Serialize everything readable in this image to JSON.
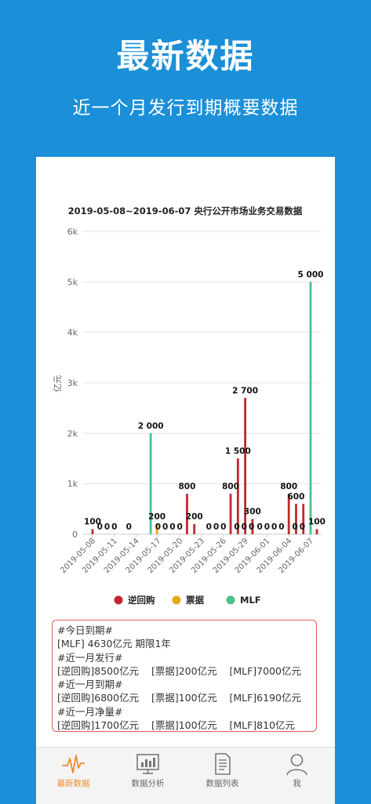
{
  "header": {
    "title": "最新数据",
    "subtitle": "近一个月发行到期概要数据"
  },
  "chart_data": {
    "type": "bar",
    "title": "2019-05-08~2019-06-07 央行公开市场业务交易数据",
    "ylabel": "亿元",
    "ylim": [
      0,
      6000
    ],
    "yticks": [
      "0",
      "1k",
      "2k",
      "3k",
      "4k",
      "5k",
      "6k"
    ],
    "x_tick_labels": [
      "2019-05-08",
      "2019-05-11",
      "2019-05-14",
      "2019-05-17",
      "2019-05-20",
      "2019-05-23",
      "2019-05-26",
      "2019-05-29",
      "2019-06-01",
      "2019-06-04",
      "2019-06-07"
    ],
    "legend_position": "bottom",
    "series": [
      {
        "name": "逆回购",
        "color": "#c0282d"
      },
      {
        "name": "票据",
        "color": "#e6a817"
      },
      {
        "name": "MLF",
        "color": "#4cbf8a"
      }
    ],
    "bars": [
      {
        "date": "2019-05-08",
        "series": 0,
        "value": 100,
        "label": "100"
      },
      {
        "date": "2019-05-09",
        "series": 0,
        "value": 0,
        "label": "0"
      },
      {
        "date": "2019-05-10",
        "series": 0,
        "value": 0,
        "label": "0"
      },
      {
        "date": "2019-05-11",
        "series": 0,
        "value": 0,
        "label": "0"
      },
      {
        "date": "2019-05-13",
        "series": 0,
        "value": 0,
        "label": "0"
      },
      {
        "date": "2019-05-16",
        "series": 2,
        "value": 2000,
        "label": "2 000"
      },
      {
        "date": "2019-05-16",
        "series": 1,
        "value": 200,
        "label": "200"
      },
      {
        "date": "2019-05-17",
        "series": 0,
        "value": 0,
        "label": "0"
      },
      {
        "date": "2019-05-18",
        "series": 0,
        "value": 0,
        "label": "0"
      },
      {
        "date": "2019-05-19",
        "series": 0,
        "value": 0,
        "label": "0"
      },
      {
        "date": "2019-05-20",
        "series": 0,
        "value": 0,
        "label": "0"
      },
      {
        "date": "2019-05-21",
        "series": 0,
        "value": 800,
        "label": "800"
      },
      {
        "date": "2019-05-22",
        "series": 0,
        "value": 200,
        "label": "200"
      },
      {
        "date": "2019-05-24",
        "series": 0,
        "value": 0,
        "label": "0"
      },
      {
        "date": "2019-05-25",
        "series": 0,
        "value": 0,
        "label": "0"
      },
      {
        "date": "2019-05-26",
        "series": 0,
        "value": 0,
        "label": "0"
      },
      {
        "date": "2019-05-27",
        "series": 0,
        "value": 800,
        "label": "800"
      },
      {
        "date": "2019-05-27",
        "series": 0,
        "value": 0,
        "label": "0"
      },
      {
        "date": "2019-05-28",
        "series": 0,
        "value": 1500,
        "label": "1 500"
      },
      {
        "date": "2019-05-28",
        "series": 0,
        "value": 0,
        "label": "0"
      },
      {
        "date": "2019-05-29",
        "series": 0,
        "value": 2700,
        "label": "2 700"
      },
      {
        "date": "2019-05-29",
        "series": 0,
        "value": 0,
        "label": "0"
      },
      {
        "date": "2019-05-30",
        "series": 0,
        "value": 300,
        "label": "300"
      },
      {
        "date": "2019-05-31",
        "series": 0,
        "value": 0,
        "label": "0"
      },
      {
        "date": "2019-06-01",
        "series": 0,
        "value": 0,
        "label": "0"
      },
      {
        "date": "2019-06-02",
        "series": 0,
        "value": 0,
        "label": "0"
      },
      {
        "date": "2019-06-03",
        "series": 0,
        "value": 0,
        "label": "0"
      },
      {
        "date": "2019-06-04",
        "series": 0,
        "value": 800,
        "label": "800"
      },
      {
        "date": "2019-06-04",
        "series": 0,
        "value": 0,
        "label": "0"
      },
      {
        "date": "2019-06-05",
        "series": 0,
        "value": 600,
        "label": "600"
      },
      {
        "date": "2019-06-05",
        "series": 0,
        "value": 0,
        "label": "0"
      },
      {
        "date": "2019-06-06",
        "series": 0,
        "value": 600,
        "label": ""
      },
      {
        "date": "2019-06-07",
        "series": 2,
        "value": 5000,
        "label": "5 000"
      },
      {
        "date": "2019-06-07",
        "series": 0,
        "value": 100,
        "label": "100"
      }
    ]
  },
  "summary": {
    "lines": [
      "#今日到期#",
      "[MLF] 4630亿元 期限1年",
      "#近一月发行#",
      "[逆回购]8500亿元    [票据]200亿元    [MLF]7000亿元",
      "#近一月到期#",
      "[逆回购]6800亿元    [票据]100亿元    [MLF]6190亿元",
      "#近一月净量#",
      "[逆回购]1700亿元    [票据]100亿元    [MLF]810亿元"
    ]
  },
  "tabbar": {
    "items": [
      {
        "label": "最新数据",
        "icon": "pulse-icon",
        "active": true
      },
      {
        "label": "数据分析",
        "icon": "monitor-chart-icon",
        "active": false
      },
      {
        "label": "数据列表",
        "icon": "document-list-icon",
        "active": false
      },
      {
        "label": "我",
        "icon": "user-icon",
        "active": false
      }
    ],
    "active_color": "#f08a2c"
  }
}
